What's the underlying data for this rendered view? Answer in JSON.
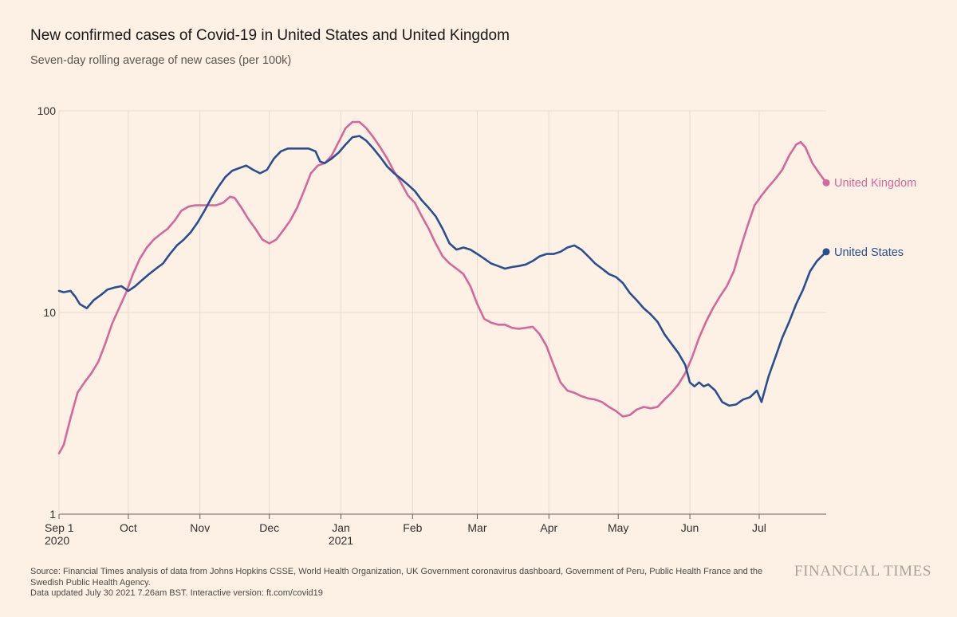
{
  "chart_data": {
    "type": "line",
    "title": "New confirmed cases of Covid-19 in United States and United Kingdom",
    "subtitle": "Seven-day rolling average of new cases (per 100k)",
    "yscale": "log",
    "ylim": [
      1,
      100
    ],
    "xlim": [
      "2020-09-01",
      "2021-07-30"
    ],
    "yticks": [
      {
        "value": 1,
        "label": "1"
      },
      {
        "value": 10,
        "label": "10"
      },
      {
        "value": 100,
        "label": "100"
      }
    ],
    "xticks": [
      {
        "date": "2020-09-01",
        "label": "Sep 1",
        "sub": "2020"
      },
      {
        "date": "2020-10-01",
        "label": "Oct",
        "sub": ""
      },
      {
        "date": "2020-11-01",
        "label": "Nov",
        "sub": ""
      },
      {
        "date": "2020-12-01",
        "label": "Dec",
        "sub": ""
      },
      {
        "date": "2021-01-01",
        "label": "Jan",
        "sub": "2021"
      },
      {
        "date": "2021-02-01",
        "label": "Feb",
        "sub": ""
      },
      {
        "date": "2021-03-01",
        "label": "Mar",
        "sub": ""
      },
      {
        "date": "2021-04-01",
        "label": "Apr",
        "sub": ""
      },
      {
        "date": "2021-05-01",
        "label": "May",
        "sub": ""
      },
      {
        "date": "2021-06-01",
        "label": "Jun",
        "sub": ""
      },
      {
        "date": "2021-07-01",
        "label": "Jul",
        "sub": ""
      }
    ],
    "grid": true,
    "series": [
      {
        "name": "United Kingdom",
        "color": "#d5689a",
        "points": [
          [
            "2020-09-01",
            2.0
          ],
          [
            "2020-09-03",
            2.2
          ],
          [
            "2020-09-06",
            3.0
          ],
          [
            "2020-09-09",
            4.0
          ],
          [
            "2020-09-12",
            4.5
          ],
          [
            "2020-09-15",
            5.0
          ],
          [
            "2020-09-18",
            5.7
          ],
          [
            "2020-09-21",
            7.0
          ],
          [
            "2020-09-24",
            8.8
          ],
          [
            "2020-09-27",
            10.5
          ],
          [
            "2020-09-30",
            12.5
          ],
          [
            "2020-10-03",
            15.5
          ],
          [
            "2020-10-06",
            18.5
          ],
          [
            "2020-10-09",
            21.0
          ],
          [
            "2020-10-12",
            23.0
          ],
          [
            "2020-10-15",
            24.5
          ],
          [
            "2020-10-18",
            26.0
          ],
          [
            "2020-10-21",
            28.5
          ],
          [
            "2020-10-24",
            32.0
          ],
          [
            "2020-10-27",
            33.5
          ],
          [
            "2020-10-30",
            34.0
          ],
          [
            "2020-11-02",
            34.0
          ],
          [
            "2020-11-05",
            34.0
          ],
          [
            "2020-11-08",
            34.0
          ],
          [
            "2020-11-11",
            35.0
          ],
          [
            "2020-11-14",
            37.5
          ],
          [
            "2020-11-16",
            37.0
          ],
          [
            "2020-11-19",
            33.0
          ],
          [
            "2020-11-22",
            29.0
          ],
          [
            "2020-11-25",
            26.0
          ],
          [
            "2020-11-28",
            23.0
          ],
          [
            "2020-12-01",
            22.0
          ],
          [
            "2020-12-04",
            23.0
          ],
          [
            "2020-12-07",
            25.5
          ],
          [
            "2020-12-10",
            28.5
          ],
          [
            "2020-12-13",
            33.0
          ],
          [
            "2020-12-16",
            40.0
          ],
          [
            "2020-12-19",
            49.0
          ],
          [
            "2020-12-22",
            53.5
          ],
          [
            "2020-12-25",
            55.0
          ],
          [
            "2020-12-28",
            60.0
          ],
          [
            "2020-12-31",
            70.0
          ],
          [
            "2021-01-03",
            82.0
          ],
          [
            "2021-01-06",
            88.0
          ],
          [
            "2021-01-09",
            88.0
          ],
          [
            "2021-01-12",
            82.0
          ],
          [
            "2021-01-15",
            74.0
          ],
          [
            "2021-01-18",
            66.0
          ],
          [
            "2021-01-21",
            58.0
          ],
          [
            "2021-01-24",
            50.0
          ],
          [
            "2021-01-27",
            44.0
          ],
          [
            "2021-01-30",
            38.0
          ],
          [
            "2021-02-02",
            35.0
          ],
          [
            "2021-02-05",
            30.0
          ],
          [
            "2021-02-08",
            26.0
          ],
          [
            "2021-02-11",
            22.0
          ],
          [
            "2021-02-14",
            19.0
          ],
          [
            "2021-02-17",
            17.5
          ],
          [
            "2021-02-20",
            16.5
          ],
          [
            "2021-02-23",
            15.5
          ],
          [
            "2021-02-26",
            13.5
          ],
          [
            "2021-03-01",
            11.0
          ],
          [
            "2021-03-04",
            9.3
          ],
          [
            "2021-03-07",
            8.9
          ],
          [
            "2021-03-10",
            8.7
          ],
          [
            "2021-03-13",
            8.7
          ],
          [
            "2021-03-16",
            8.4
          ],
          [
            "2021-03-19",
            8.3
          ],
          [
            "2021-03-22",
            8.4
          ],
          [
            "2021-03-25",
            8.5
          ],
          [
            "2021-03-28",
            7.8
          ],
          [
            "2021-03-31",
            6.8
          ],
          [
            "2021-04-03",
            5.5
          ],
          [
            "2021-04-06",
            4.5
          ],
          [
            "2021-04-09",
            4.1
          ],
          [
            "2021-04-12",
            4.0
          ],
          [
            "2021-04-15",
            3.85
          ],
          [
            "2021-04-18",
            3.75
          ],
          [
            "2021-04-21",
            3.7
          ],
          [
            "2021-04-24",
            3.6
          ],
          [
            "2021-04-27",
            3.4
          ],
          [
            "2021-04-30",
            3.25
          ],
          [
            "2021-05-03",
            3.05
          ],
          [
            "2021-05-06",
            3.1
          ],
          [
            "2021-05-09",
            3.3
          ],
          [
            "2021-05-12",
            3.4
          ],
          [
            "2021-05-15",
            3.35
          ],
          [
            "2021-05-18",
            3.4
          ],
          [
            "2021-05-21",
            3.7
          ],
          [
            "2021-05-24",
            4.0
          ],
          [
            "2021-05-27",
            4.4
          ],
          [
            "2021-05-30",
            5.0
          ],
          [
            "2021-06-02",
            6.0
          ],
          [
            "2021-06-05",
            7.5
          ],
          [
            "2021-06-08",
            9.0
          ],
          [
            "2021-06-11",
            10.5
          ],
          [
            "2021-06-14",
            12.0
          ],
          [
            "2021-06-17",
            13.5
          ],
          [
            "2021-06-20",
            16.0
          ],
          [
            "2021-06-23",
            21.0
          ],
          [
            "2021-06-26",
            27.0
          ],
          [
            "2021-06-29",
            34.0
          ],
          [
            "2021-07-02",
            38.0
          ],
          [
            "2021-07-05",
            42.0
          ],
          [
            "2021-07-08",
            46.0
          ],
          [
            "2021-07-11",
            51.0
          ],
          [
            "2021-07-14",
            60.0
          ],
          [
            "2021-07-17",
            68.0
          ],
          [
            "2021-07-19",
            70.0
          ],
          [
            "2021-07-21",
            66.0
          ],
          [
            "2021-07-24",
            55.0
          ],
          [
            "2021-07-27",
            49.0
          ],
          [
            "2021-07-30",
            44.0
          ]
        ]
      },
      {
        "name": "United States",
        "color": "#2a4e8f",
        "points": [
          [
            "2020-09-01",
            12.8
          ],
          [
            "2020-09-03",
            12.6
          ],
          [
            "2020-09-06",
            12.8
          ],
          [
            "2020-09-08",
            12.0
          ],
          [
            "2020-09-10",
            11.0
          ],
          [
            "2020-09-13",
            10.5
          ],
          [
            "2020-09-16",
            11.5
          ],
          [
            "2020-09-19",
            12.2
          ],
          [
            "2020-09-22",
            13.0
          ],
          [
            "2020-09-25",
            13.3
          ],
          [
            "2020-09-28",
            13.5
          ],
          [
            "2020-10-01",
            12.8
          ],
          [
            "2020-10-04",
            13.5
          ],
          [
            "2020-10-07",
            14.5
          ],
          [
            "2020-10-10",
            15.5
          ],
          [
            "2020-10-13",
            16.5
          ],
          [
            "2020-10-16",
            17.5
          ],
          [
            "2020-10-19",
            19.5
          ],
          [
            "2020-10-22",
            21.5
          ],
          [
            "2020-10-25",
            23.0
          ],
          [
            "2020-10-28",
            25.0
          ],
          [
            "2020-10-31",
            28.0
          ],
          [
            "2020-11-03",
            32.0
          ],
          [
            "2020-11-06",
            37.0
          ],
          [
            "2020-11-09",
            42.0
          ],
          [
            "2020-11-12",
            47.0
          ],
          [
            "2020-11-15",
            50.5
          ],
          [
            "2020-11-18",
            52.0
          ],
          [
            "2020-11-21",
            53.5
          ],
          [
            "2020-11-24",
            51.0
          ],
          [
            "2020-11-27",
            49.0
          ],
          [
            "2020-11-30",
            51.0
          ],
          [
            "2020-12-03",
            58.0
          ],
          [
            "2020-12-06",
            63.0
          ],
          [
            "2020-12-09",
            65.0
          ],
          [
            "2020-12-12",
            65.0
          ],
          [
            "2020-12-15",
            65.0
          ],
          [
            "2020-12-18",
            65.0
          ],
          [
            "2020-12-21",
            63.0
          ],
          [
            "2020-12-23",
            56.0
          ],
          [
            "2020-12-25",
            55.0
          ],
          [
            "2020-12-28",
            58.0
          ],
          [
            "2020-12-31",
            62.0
          ],
          [
            "2021-01-03",
            68.0
          ],
          [
            "2021-01-06",
            74.0
          ],
          [
            "2021-01-09",
            75.0
          ],
          [
            "2021-01-12",
            71.0
          ],
          [
            "2021-01-15",
            65.0
          ],
          [
            "2021-01-18",
            59.0
          ],
          [
            "2021-01-21",
            53.0
          ],
          [
            "2021-01-24",
            49.0
          ],
          [
            "2021-01-27",
            46.0
          ],
          [
            "2021-01-30",
            43.0
          ],
          [
            "2021-02-02",
            40.0
          ],
          [
            "2021-02-05",
            36.0
          ],
          [
            "2021-02-08",
            33.0
          ],
          [
            "2021-02-11",
            30.0
          ],
          [
            "2021-02-14",
            26.0
          ],
          [
            "2021-02-17",
            22.0
          ],
          [
            "2021-02-20",
            20.5
          ],
          [
            "2021-02-23",
            21.0
          ],
          [
            "2021-02-26",
            20.5
          ],
          [
            "2021-03-01",
            19.5
          ],
          [
            "2021-03-04",
            18.5
          ],
          [
            "2021-03-07",
            17.5
          ],
          [
            "2021-03-10",
            17.0
          ],
          [
            "2021-03-13",
            16.5
          ],
          [
            "2021-03-16",
            16.8
          ],
          [
            "2021-03-19",
            17.0
          ],
          [
            "2021-03-22",
            17.3
          ],
          [
            "2021-03-25",
            18.0
          ],
          [
            "2021-03-28",
            19.0
          ],
          [
            "2021-03-31",
            19.5
          ],
          [
            "2021-04-03",
            19.5
          ],
          [
            "2021-04-06",
            20.0
          ],
          [
            "2021-04-09",
            21.0
          ],
          [
            "2021-04-12",
            21.5
          ],
          [
            "2021-04-15",
            20.5
          ],
          [
            "2021-04-18",
            19.0
          ],
          [
            "2021-04-21",
            17.5
          ],
          [
            "2021-04-24",
            16.5
          ],
          [
            "2021-04-27",
            15.5
          ],
          [
            "2021-04-30",
            15.0
          ],
          [
            "2021-05-03",
            14.0
          ],
          [
            "2021-05-06",
            12.5
          ],
          [
            "2021-05-09",
            11.5
          ],
          [
            "2021-05-12",
            10.5
          ],
          [
            "2021-05-15",
            9.8
          ],
          [
            "2021-05-18",
            9.0
          ],
          [
            "2021-05-21",
            7.8
          ],
          [
            "2021-05-24",
            7.0
          ],
          [
            "2021-05-27",
            6.3
          ],
          [
            "2021-05-30",
            5.5
          ],
          [
            "2021-06-01",
            4.5
          ],
          [
            "2021-06-03",
            4.3
          ],
          [
            "2021-06-05",
            4.5
          ],
          [
            "2021-06-07",
            4.3
          ],
          [
            "2021-06-09",
            4.4
          ],
          [
            "2021-06-12",
            4.1
          ],
          [
            "2021-06-15",
            3.6
          ],
          [
            "2021-06-18",
            3.45
          ],
          [
            "2021-06-21",
            3.5
          ],
          [
            "2021-06-24",
            3.7
          ],
          [
            "2021-06-27",
            3.8
          ],
          [
            "2021-06-30",
            4.1
          ],
          [
            "2021-07-02",
            3.6
          ],
          [
            "2021-07-05",
            4.8
          ],
          [
            "2021-07-08",
            6.0
          ],
          [
            "2021-07-11",
            7.5
          ],
          [
            "2021-07-14",
            9.0
          ],
          [
            "2021-07-17",
            11.0
          ],
          [
            "2021-07-20",
            13.0
          ],
          [
            "2021-07-23",
            16.0
          ],
          [
            "2021-07-26",
            18.0
          ],
          [
            "2021-07-30",
            20.0
          ]
        ]
      }
    ]
  },
  "footer": {
    "source_line1": "Source: Financial Times analysis of data from Johns Hopkins CSSE, World Health Organization, UK Government coronavirus dashboard, Government of Peru, Public Health France and the Swedish Public Health Agency.",
    "source_line2": "Data updated July 30 2021 7.26am BST. Interactive version: ft.com/covid19",
    "logo": "FINANCIAL TIMES"
  }
}
